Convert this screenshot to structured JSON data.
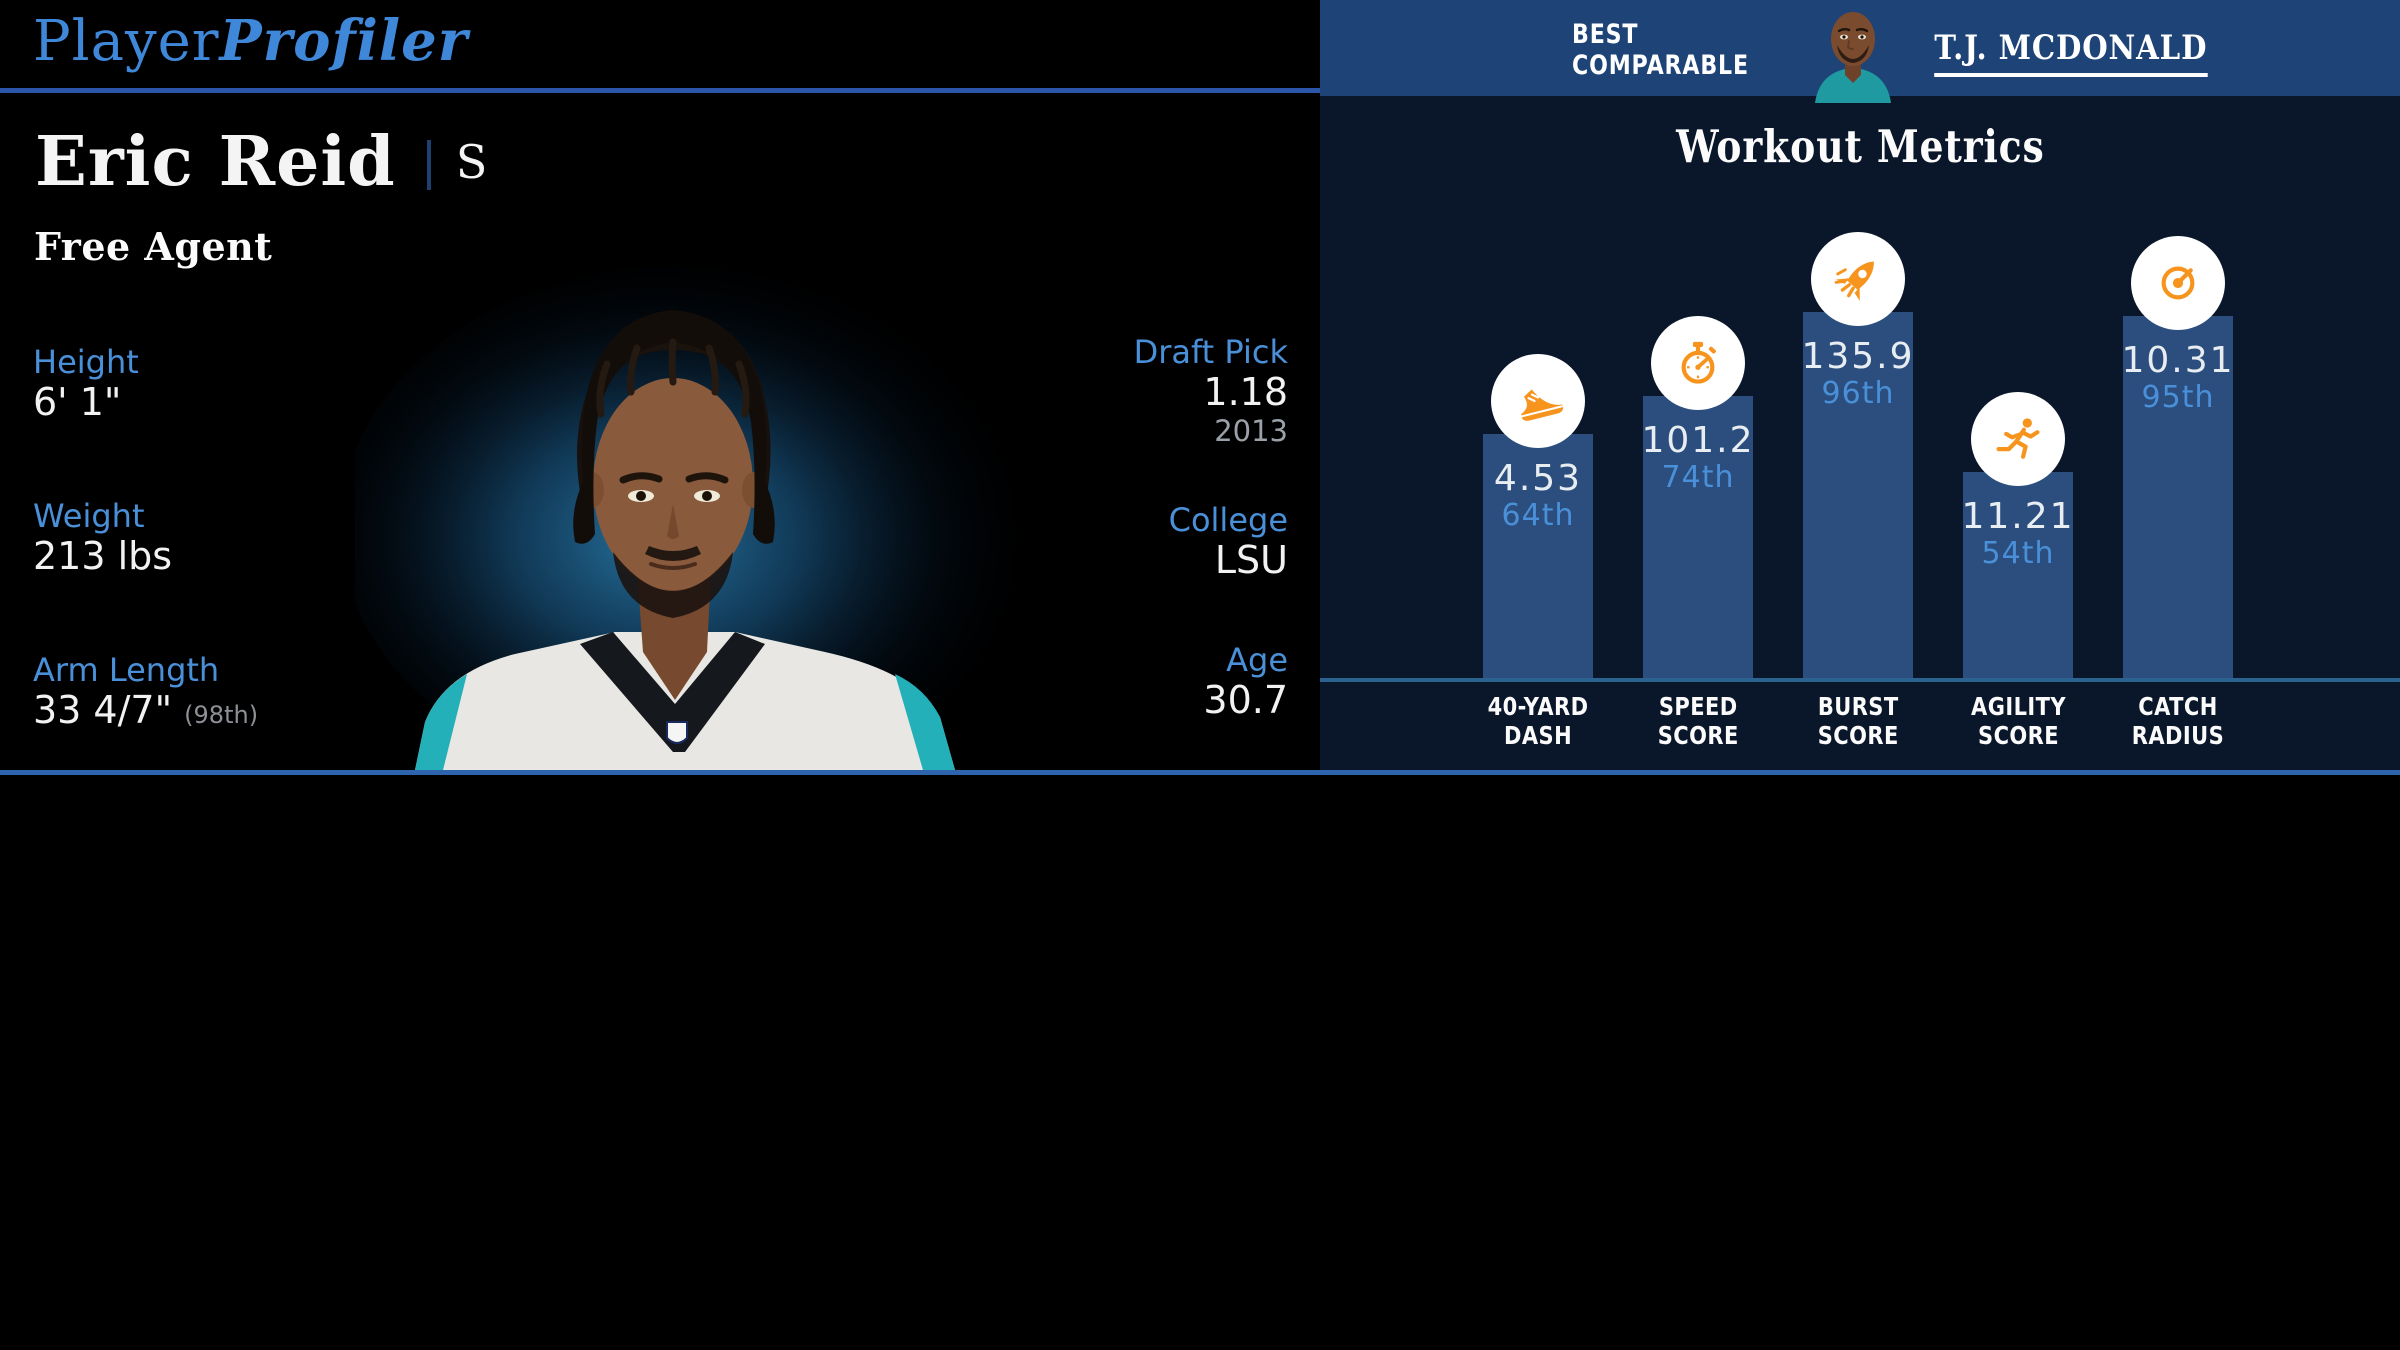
{
  "brand": {
    "part1": "Player",
    "part2": "Profiler"
  },
  "player": {
    "name": "Eric Reid",
    "position": "S",
    "team_status": "Free Agent",
    "stats_left": [
      {
        "label": "Height",
        "value": "6' 1\""
      },
      {
        "label": "Weight",
        "value": "213 lbs"
      },
      {
        "label": "Arm Length",
        "value": "33 4/7\"",
        "note": "(98th)"
      }
    ],
    "stats_right": [
      {
        "label": "Draft Pick",
        "value": "1.18",
        "sub": "2013"
      },
      {
        "label": "College",
        "value": "LSU"
      },
      {
        "label": "Age",
        "value": "30.7"
      }
    ]
  },
  "best_comparable": {
    "label_line1": "BEST",
    "label_line2": "COMPARABLE",
    "player_name": "T.J. MCDONALD"
  },
  "chart_data": {
    "type": "bar",
    "title": "Workout Metrics",
    "categories": [
      "40-Yard Dash",
      "Speed Score",
      "Burst Score",
      "Agility Score",
      "Catch Radius"
    ],
    "series": [
      {
        "name": "value",
        "values": [
          4.53,
          101.2,
          135.9,
          11.21,
          10.31
        ]
      },
      {
        "name": "percentile",
        "values": [
          64,
          74,
          96,
          54,
          95
        ]
      }
    ],
    "legend": "none",
    "grid": false,
    "bars": [
      {
        "label_line1": "40-YARD",
        "label_line2": "DASH",
        "value": "4.53",
        "percentile": "64th",
        "percentile_num": 64,
        "icon": "shoe-icon"
      },
      {
        "label_line1": "SPEED",
        "label_line2": "SCORE",
        "value": "101.2",
        "percentile": "74th",
        "percentile_num": 74,
        "icon": "stopwatch-icon"
      },
      {
        "label_line1": "BURST",
        "label_line2": "SCORE",
        "value": "135.9",
        "percentile": "96th",
        "percentile_num": 96,
        "icon": "rocket-icon"
      },
      {
        "label_line1": "AGILITY",
        "label_line2": "SCORE",
        "value": "11.21",
        "percentile": "54th",
        "percentile_num": 54,
        "icon": "runner-icon"
      },
      {
        "label_line1": "CATCH",
        "label_line2": "RADIUS",
        "value": "10.31",
        "percentile": "95th",
        "percentile_num": 95,
        "icon": "radius-icon"
      }
    ]
  },
  "colors": {
    "accent_blue": "#4a90d9",
    "logo_blue": "#3f87d9",
    "header_blue": "#1e4377",
    "panel_navy": "#0a1629",
    "bar_blue": "#2b4e7e",
    "icon_orange": "#f7941e",
    "divider_teal": "#2a6390",
    "bottom_line_blue": "#2e63ae"
  }
}
